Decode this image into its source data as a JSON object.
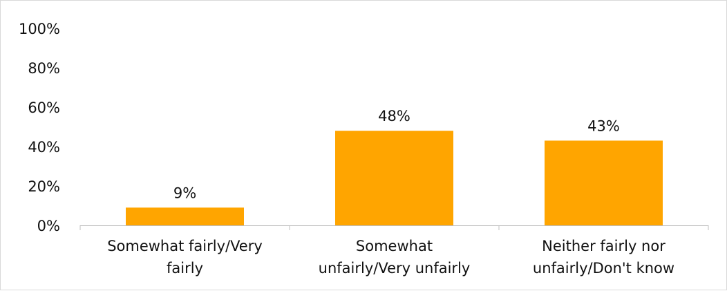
{
  "chart_data": {
    "type": "bar",
    "categories": [
      [
        "Somewhat fairly/Very",
        "fairly"
      ],
      [
        "Somewhat",
        "unfairly/Very unfairly"
      ],
      [
        "Neither fairly nor",
        "unfairly/Don't know"
      ]
    ],
    "values": [
      9,
      48,
      43
    ],
    "value_labels": [
      "9%",
      "48%",
      "43%"
    ],
    "y_ticks": [
      "0%",
      "20%",
      "40%",
      "60%",
      "80%",
      "100%"
    ],
    "ylim": [
      0,
      100
    ],
    "grid": false,
    "legend": "none",
    "title": "",
    "xlabel": "",
    "ylabel": "",
    "colors": {
      "bar": "#FFA500",
      "axis": "#bfbfbf",
      "text": "#111111"
    }
  }
}
